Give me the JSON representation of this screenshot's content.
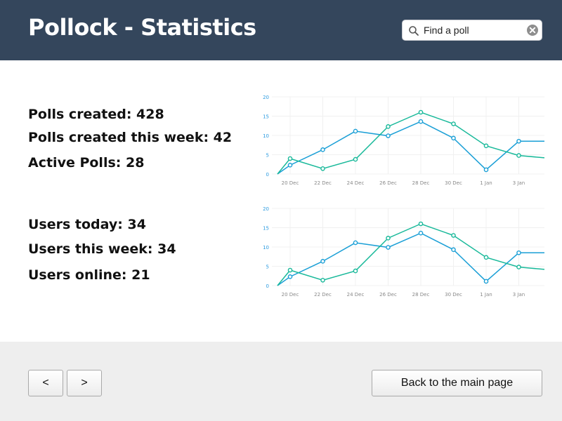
{
  "header": {
    "title": "Pollock - Statistics",
    "search": {
      "placeholder": "Find a poll",
      "value": ""
    }
  },
  "stats": {
    "polls_created": "Polls created: 428",
    "polls_this_week": "Polls created this week: 42",
    "active_polls": "Active Polls: 28",
    "users_today": "Users today: 34",
    "users_this_week": "Users this week: 34",
    "users_online": "Users online: 21"
  },
  "footer": {
    "prev_label": "<",
    "next_label": ">",
    "back_label": "Back to the main page"
  },
  "chart_data": [
    {
      "type": "line",
      "categories": [
        "20 Dec",
        "22 Dec",
        "24 Dec",
        "26 Dec",
        "28 Dec",
        "30 Dec",
        "1 Jan",
        "3 Jan"
      ],
      "y_ticks": [
        "0",
        "5",
        "10",
        "15",
        "20"
      ],
      "ylim": [
        0,
        20
      ],
      "grid": true,
      "series": [
        {
          "color": "#1a9fd6",
          "values": [
            2.3,
            6.3,
            11.1,
            9.9,
            13.6,
            9.3,
            1.1,
            8.5
          ]
        },
        {
          "color": "#19b99a",
          "values": [
            4.0,
            1.4,
            3.8,
            12.3,
            16.0,
            13.0,
            7.3,
            4.8
          ]
        }
      ]
    },
    {
      "type": "line",
      "categories": [
        "20 Dec",
        "22 Dec",
        "24 Dec",
        "26 Dec",
        "28 Dec",
        "30 Dec",
        "1 Jan",
        "3 Jan"
      ],
      "y_ticks": [
        "0",
        "5",
        "10",
        "15",
        "20"
      ],
      "ylim": [
        0,
        20
      ],
      "grid": true,
      "series": [
        {
          "color": "#1a9fd6",
          "values": [
            2.3,
            6.3,
            11.1,
            9.9,
            13.6,
            9.3,
            1.1,
            8.5
          ]
        },
        {
          "color": "#19b99a",
          "values": [
            4.0,
            1.4,
            3.8,
            12.3,
            16.0,
            13.0,
            7.3,
            4.8
          ]
        }
      ]
    }
  ]
}
